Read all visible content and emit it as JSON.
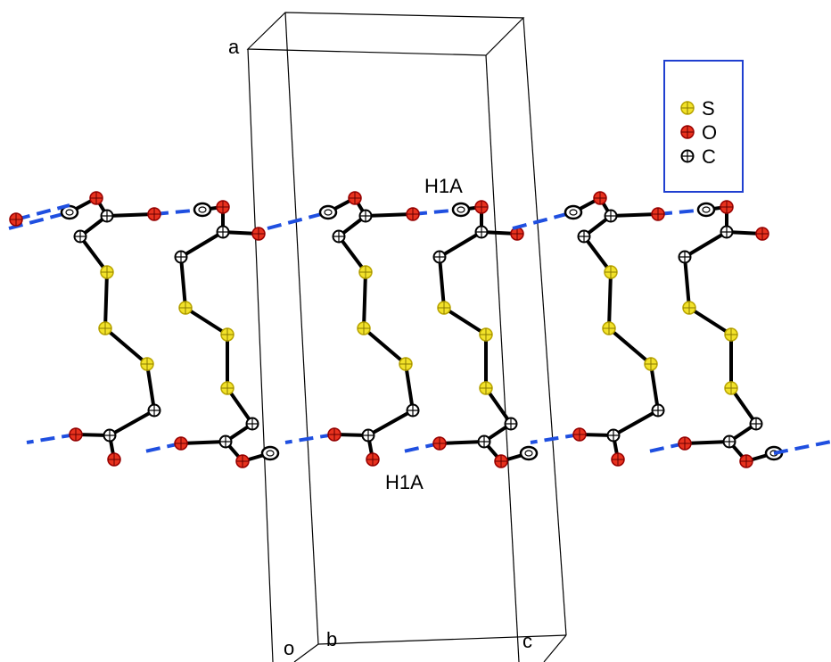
{
  "cell_axes": {
    "a": "a",
    "o": "o",
    "b": "b",
    "c": "c"
  },
  "legend": {
    "items": [
      "S",
      "O",
      "C"
    ]
  },
  "atom_labels": [
    "H1A",
    "H1A"
  ]
}
